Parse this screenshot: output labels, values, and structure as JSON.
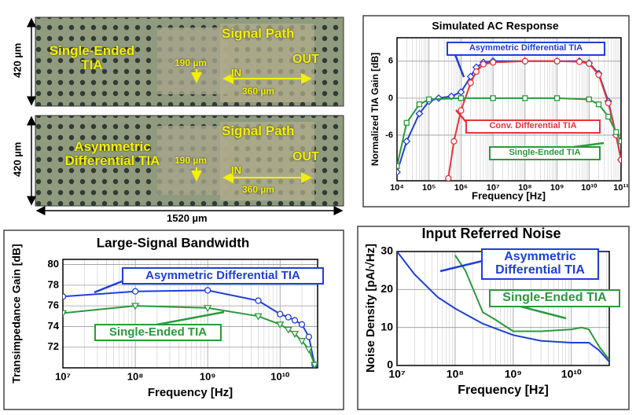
{
  "micrographs": [
    {
      "label": "Single-Ended TIA",
      "signal": "Signal Path",
      "width_in": "190 µm",
      "input": "IN",
      "width_path": "360 µm",
      "output": "OUT",
      "height": "420 µm"
    },
    {
      "label": "Asymmetric Differential TIA",
      "signal": "Signal Path",
      "width_in": "190 µm",
      "input": "IN",
      "width_path": "360 µm",
      "output": "OUT",
      "height": "420 µm"
    }
  ],
  "chip_width": "1520 µm",
  "chart_data": [
    {
      "type": "line",
      "title": "Simulated AC Response",
      "xlabel": "Frequency [Hz]",
      "ylabel": "Normalized TIA Gain [dB]",
      "xlog": true,
      "grid": true,
      "xlim": [
        10000,
        100000000000
      ],
      "ylim": [
        -13.4,
        9.8
      ],
      "xticks": [
        {
          "value": 10000,
          "label": "10⁴"
        },
        {
          "value": 100000,
          "label": "10⁵"
        },
        {
          "value": 1000000,
          "label": "10⁶"
        },
        {
          "value": 10000000,
          "label": "10⁷"
        },
        {
          "value": 100000000,
          "label": "10⁸"
        },
        {
          "value": 1000000000,
          "label": "10⁹"
        },
        {
          "value": 10000000000,
          "label": "10¹⁰"
        },
        {
          "value": 100000000000,
          "label": "10¹¹"
        }
      ],
      "yticks": [
        {
          "value": 6,
          "label": "6"
        },
        0,
        {
          "value": -6,
          "label": "-6"
        }
      ],
      "series": [
        {
          "name": "Asymmetric Differential TIA",
          "color": "#1f3fd8",
          "marker": "diamond",
          "x": [
            10000,
            20000,
            50000,
            100000,
            200000,
            500000,
            1000000,
            2000000,
            3000000,
            5000000,
            10000000,
            100000000,
            1000000000,
            5000000000,
            10000000000,
            20000000000,
            40000000000,
            70000000000,
            100000000000
          ],
          "values": [
            -12,
            -7,
            -2.5,
            -0.5,
            0,
            0.3,
            1,
            3.5,
            5,
            5.8,
            6,
            6,
            6,
            6,
            5.7,
            4,
            -0.5,
            -6,
            -10
          ]
        },
        {
          "name": "Conv. Differential TIA",
          "color": "#e8343a",
          "marker": "circle",
          "x": [
            400000,
            600000,
            1000000,
            2000000,
            3000000,
            5000000,
            10000000,
            100000000,
            1000000000,
            5000000000,
            10000000000,
            20000000000,
            40000000000,
            70000000000,
            100000000000
          ],
          "values": [
            -13,
            -7,
            -2,
            2.5,
            4.3,
            5.5,
            5.8,
            6,
            6,
            5.9,
            5.6,
            3.8,
            -0.8,
            -6,
            -10
          ]
        },
        {
          "name": "Single-Ended TIA",
          "color": "#2a9a3a",
          "marker": "square",
          "x": [
            10000,
            20000,
            50000,
            100000,
            1000000,
            10000000,
            100000000,
            1000000000,
            10000000000,
            20000000000,
            40000000000,
            70000000000,
            100000000000
          ],
          "values": [
            -11,
            -4,
            -1,
            -0.2,
            0,
            0,
            0,
            0,
            -0.2,
            -1,
            -3,
            -5.5,
            -7
          ]
        }
      ]
    },
    {
      "type": "line",
      "title": "Large-Signal Bandwidth",
      "xlabel": "Frequency [Hz]",
      "ylabel": "Transimpedance Gain [dB]",
      "xlog": true,
      "grid": true,
      "xlim": [
        10000000,
        33000000000
      ],
      "ylim": [
        70,
        80.5
      ],
      "xticks": [
        {
          "value": 10000000,
          "label": "10⁷"
        },
        {
          "value": 100000000,
          "label": "10⁸"
        },
        {
          "value": 1000000000,
          "label": "10⁹"
        },
        {
          "value": 10000000000,
          "label": "10¹⁰"
        }
      ],
      "yticks": [
        72,
        74,
        76,
        78,
        80
      ],
      "series": [
        {
          "name": "Asymmetric Differential TIA",
          "color": "#1f3fd8",
          "marker": "circle",
          "x": [
            10000000,
            100000000,
            1000000000,
            5000000000,
            10000000000,
            13000000000,
            16000000000,
            20000000000,
            25000000000,
            30000000000
          ],
          "values": [
            76.9,
            77.4,
            77.5,
            76.5,
            75.2,
            74.9,
            74.6,
            74.2,
            73,
            70.3
          ]
        },
        {
          "name": "Single-Ended TIA",
          "color": "#2a9a3a",
          "marker": "triangle",
          "x": [
            10000000,
            100000000,
            1000000000,
            5000000000,
            10000000000,
            13000000000,
            16000000000,
            20000000000,
            25000000000,
            30000000000
          ],
          "values": [
            75.3,
            76,
            75.8,
            75,
            74.2,
            73.7,
            73.3,
            72.6,
            71.8,
            70.3
          ]
        }
      ]
    },
    {
      "type": "line",
      "title": "Input Referred Noise",
      "xlabel": "Frequency [Hz]",
      "ylabel": "Noise Density [pA/√Hz]",
      "xlog": true,
      "grid": true,
      "xlim": [
        10000000,
        45000000000
      ],
      "ylim": [
        0,
        30
      ],
      "xticks": [
        {
          "value": 10000000,
          "label": "10⁷"
        },
        {
          "value": 100000000,
          "label": "10⁸"
        },
        {
          "value": 1000000000,
          "label": "10⁹"
        },
        {
          "value": 10000000000,
          "label": "10¹⁰"
        }
      ],
      "yticks": [
        0,
        10,
        20,
        30
      ],
      "series": [
        {
          "name": "Asymmetric Differential TIA",
          "color": "#1f3fd8",
          "x": [
            10000000,
            20000000,
            50000000,
            100000000,
            300000000,
            1000000000,
            3000000000,
            10000000000,
            20000000000,
            30000000000,
            45000000000
          ],
          "values": [
            30,
            24,
            18,
            15,
            11,
            8,
            6.5,
            6,
            6,
            4,
            1
          ]
        },
        {
          "name": "Single-Ended TIA",
          "color": "#2a9a3a",
          "x": [
            100000000,
            150000000,
            300000000,
            500000000,
            1000000000,
            3000000000,
            10000000000,
            15000000000,
            20000000000,
            30000000000,
            45000000000
          ],
          "values": [
            29,
            25,
            14,
            12,
            9,
            9,
            9.5,
            10,
            9.5,
            5,
            1.5
          ]
        }
      ]
    }
  ]
}
